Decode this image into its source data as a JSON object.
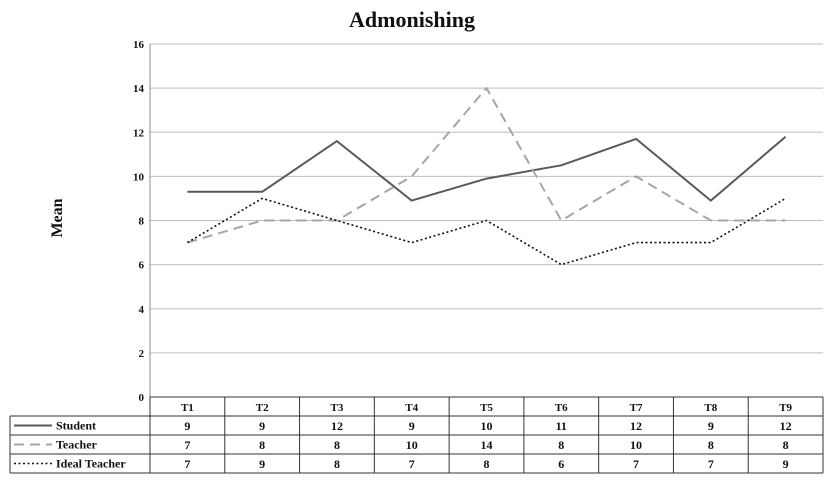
{
  "chart_data": {
    "type": "line",
    "title": "Admonishing",
    "ylabel": "Mean",
    "xlabel": "",
    "ylim": [
      0,
      16
    ],
    "yticks": [
      0,
      2,
      4,
      6,
      8,
      10,
      12,
      14,
      16
    ],
    "grid": true,
    "legend": "table-below",
    "categories": [
      "T1",
      "T2",
      "T3",
      "T4",
      "T5",
      "T6",
      "T7",
      "T8",
      "T9"
    ],
    "series": [
      {
        "name": "Student",
        "style": "solid",
        "color": "#595959",
        "values": [
          9.3,
          9.3,
          11.6,
          8.9,
          9.9,
          10.5,
          11.7,
          8.9,
          11.8
        ],
        "table_values": [
          "9",
          "9",
          "12",
          "9",
          "10",
          "11",
          "12",
          "9",
          "12"
        ]
      },
      {
        "name": "Teacher",
        "style": "dashed",
        "color": "#a6a6a6",
        "values": [
          7,
          8,
          8,
          10,
          14,
          8,
          10,
          8,
          8
        ],
        "table_values": [
          "7",
          "8",
          "8",
          "10",
          "14",
          "8",
          "10",
          "8",
          "8"
        ]
      },
      {
        "name": "Ideal Teacher",
        "style": "dotted",
        "color": "#111111",
        "values": [
          7,
          9,
          8,
          7,
          8,
          6,
          7,
          7,
          9
        ],
        "table_values": [
          "7",
          "9",
          "8",
          "7",
          "8",
          "6",
          "7",
          "7",
          "9"
        ]
      }
    ]
  }
}
